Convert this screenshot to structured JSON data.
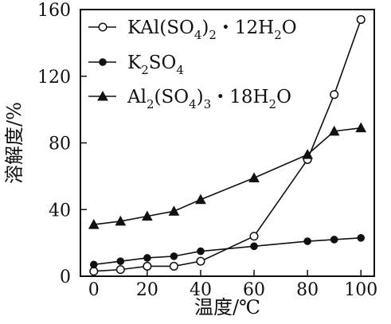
{
  "chart_data": {
    "type": "line",
    "xlabel": "温度/℃",
    "ylabel": "溶解度/%",
    "xlim": [
      -5,
      105
    ],
    "ylim": [
      0,
      160
    ],
    "x_ticks": [
      0,
      20,
      40,
      60,
      80,
      100
    ],
    "y_ticks": [
      0,
      40,
      80,
      120,
      160
    ],
    "grid": false,
    "legend_position": "top-left",
    "series": [
      {
        "name": "KAl(SO4)2·12H2O",
        "marker": "open-circle",
        "x": [
          0,
          10,
          20,
          30,
          40,
          60,
          80,
          90,
          100
        ],
        "y": [
          3,
          4,
          6,
          6,
          9,
          24,
          70,
          109,
          154
        ]
      },
      {
        "name": "K2SO4",
        "marker": "filled-circle",
        "x": [
          0,
          10,
          20,
          30,
          40,
          60,
          80,
          90,
          100
        ],
        "y": [
          7,
          9,
          11,
          12,
          15,
          18,
          21,
          22,
          23
        ]
      },
      {
        "name": "Al2(SO4)3·18H2O",
        "marker": "filled-triangle",
        "x": [
          0,
          10,
          20,
          30,
          40,
          60,
          80,
          90,
          100
        ],
        "y": [
          31,
          33,
          36,
          39,
          46,
          59,
          73,
          87,
          89
        ]
      }
    ],
    "legend": [
      {
        "marker": "open-circle",
        "parts": [
          {
            "text": "KAl(SO",
            "type": "normal"
          },
          {
            "text": "4",
            "type": "sub"
          },
          {
            "text": ")",
            "type": "normal"
          },
          {
            "text": "2",
            "type": "sub"
          },
          {
            "text": "・12H",
            "type": "normal"
          },
          {
            "text": "2",
            "type": "sub"
          },
          {
            "text": "O",
            "type": "normal"
          }
        ]
      },
      {
        "marker": "filled-circle",
        "parts": [
          {
            "text": "K",
            "type": "normal"
          },
          {
            "text": "2",
            "type": "sub"
          },
          {
            "text": "SO",
            "type": "normal"
          },
          {
            "text": "4",
            "type": "sub"
          }
        ]
      },
      {
        "marker": "filled-triangle",
        "parts": [
          {
            "text": "Al",
            "type": "normal"
          },
          {
            "text": "2",
            "type": "sub"
          },
          {
            "text": "(SO",
            "type": "normal"
          },
          {
            "text": "4",
            "type": "sub"
          },
          {
            "text": ")",
            "type": "normal"
          },
          {
            "text": "3",
            "type": "sub"
          },
          {
            "text": "・18H",
            "type": "normal"
          },
          {
            "text": "2",
            "type": "sub"
          },
          {
            "text": "O",
            "type": "normal"
          }
        ]
      }
    ]
  }
}
